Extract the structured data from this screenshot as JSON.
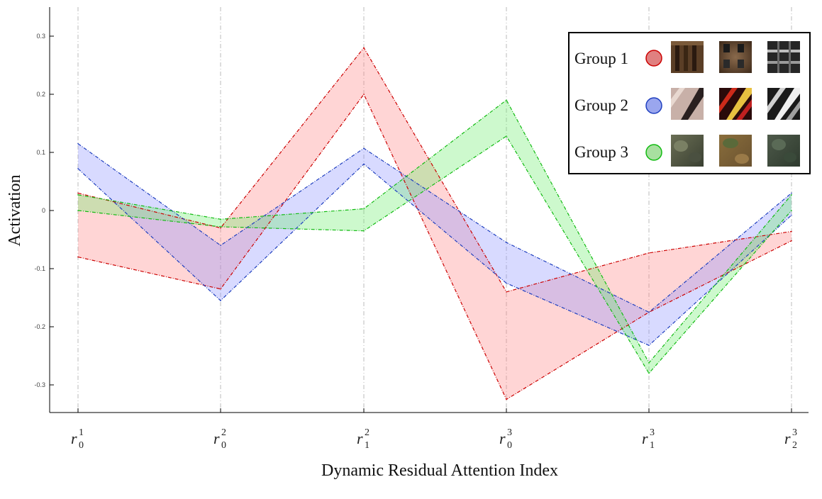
{
  "chart_data": {
    "type": "area",
    "xlabel": "Dynamic Residual Attention Index",
    "ylabel": "Activation",
    "ylim": [
      -0.35,
      0.35
    ],
    "yticks": [
      -0.3,
      -0.2,
      -0.1,
      0,
      0.1,
      0.2,
      0.3
    ],
    "ytick_labels": [
      "-0.3",
      "-0.2",
      "-0.1",
      "0",
      "0.1",
      "0.2",
      "0.3"
    ],
    "grid": "vertical dash-dot at each x category",
    "legend_position": "top-right",
    "categories": [
      {
        "base": "r",
        "sub": "0",
        "sup": "1"
      },
      {
        "base": "r",
        "sub": "0",
        "sup": "2"
      },
      {
        "base": "r",
        "sub": "1",
        "sup": "2"
      },
      {
        "base": "r",
        "sub": "0",
        "sup": "3"
      },
      {
        "base": "r",
        "sub": "1",
        "sup": "3"
      },
      {
        "base": "r",
        "sub": "2",
        "sup": "3"
      }
    ],
    "series": [
      {
        "name": "Group 1",
        "color": "#cc0000",
        "fill": "#ff8080",
        "upper": [
          0.03,
          -0.03,
          0.28,
          -0.14,
          -0.073,
          -0.036
        ],
        "lower": [
          -0.08,
          -0.135,
          0.2,
          -0.325,
          -0.175,
          -0.052
        ],
        "thumbnails": [
          "brown-facade",
          "brick-building-windows",
          "dark-window-grid"
        ]
      },
      {
        "name": "Group 2",
        "color": "#1f3fbf",
        "fill": "#8890ff",
        "upper": [
          0.115,
          -0.06,
          0.107,
          -0.055,
          -0.175,
          0.03
        ],
        "lower": [
          0.072,
          -0.155,
          0.08,
          -0.125,
          -0.232,
          -0.008
        ],
        "thumbnails": [
          "diagonal-stripes-light",
          "diagonal-stripes-red",
          "diagonal-stripes-gray"
        ]
      },
      {
        "name": "Group 3",
        "color": "#11bb11",
        "fill": "#66ee66",
        "upper": [
          0.027,
          -0.015,
          0.003,
          0.19,
          -0.262,
          0.027
        ],
        "lower": [
          0.0,
          -0.028,
          -0.035,
          0.128,
          -0.28,
          0.0
        ],
        "thumbnails": [
          "foliage-gray",
          "foliage-brown",
          "foliage-dark"
        ]
      }
    ]
  }
}
